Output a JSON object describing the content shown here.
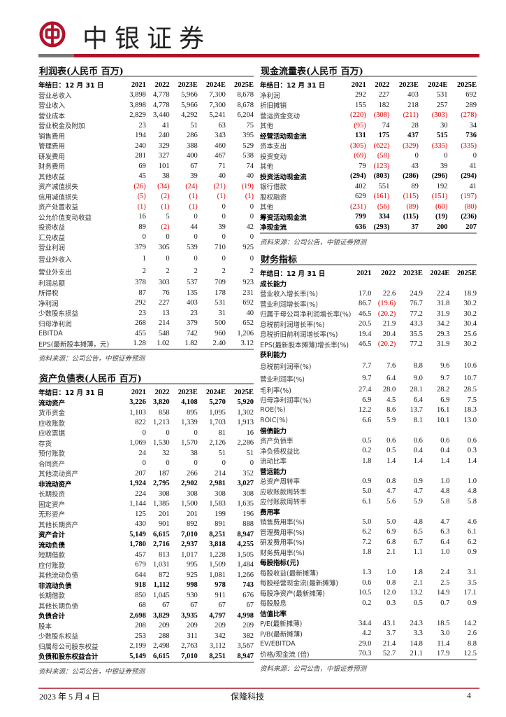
{
  "header": {
    "brand": "中银证券",
    "brand_color": "#b0132a",
    "logo": "bank-of-china-logo"
  },
  "columns": [
    "2021",
    "2022",
    "2023E",
    "2024E",
    "2025E"
  ],
  "income": {
    "title": "利润表(人民币 百万)",
    "header_label": "年结日：12 月 31 日",
    "rows": [
      {
        "label": "营业总收入",
        "values": [
          "3,898",
          "4,778",
          "5,966",
          "7,300",
          "8,678"
        ]
      },
      {
        "label": "营业收入",
        "values": [
          "3,898",
          "4,778",
          "5,966",
          "7,300",
          "8,678"
        ]
      },
      {
        "label": "营业成本",
        "values": [
          "2,829",
          "3,440",
          "4,292",
          "5,241",
          "6,204"
        ]
      },
      {
        "label": "营业税金及附加",
        "values": [
          "23",
          "41",
          "51",
          "63",
          "75"
        ]
      },
      {
        "label": "销售费用",
        "values": [
          "194",
          "240",
          "286",
          "343",
          "395"
        ]
      },
      {
        "label": "管理费用",
        "values": [
          "240",
          "329",
          "388",
          "460",
          "529"
        ]
      },
      {
        "label": "研发费用",
        "values": [
          "281",
          "327",
          "400",
          "467",
          "538"
        ]
      },
      {
        "label": "财务费用",
        "values": [
          "69",
          "101",
          "67",
          "71",
          "74"
        ]
      },
      {
        "label": "其他收益",
        "values": [
          "45",
          "38",
          "39",
          "40",
          "40"
        ]
      },
      {
        "label": "资产减值损失",
        "values": [
          "(26)",
          "(34)",
          "(24)",
          "(21)",
          "(19)"
        ]
      },
      {
        "label": "信用减值损失",
        "values": [
          "(5)",
          "(2)",
          "(1)",
          "(1)",
          "(1)"
        ]
      },
      {
        "label": "资产处置收益",
        "values": [
          "(1)",
          "(1)",
          "(1)",
          "0",
          "0"
        ]
      },
      {
        "label": "公允价值变动收益",
        "values": [
          "16",
          "5",
          "0",
          "0",
          "0"
        ]
      },
      {
        "label": "投资收益",
        "values": [
          "89",
          "(2)",
          "44",
          "39",
          "42"
        ]
      },
      {
        "label": "汇兑收益",
        "values": [
          "0",
          "0",
          "0",
          "0",
          "0"
        ]
      },
      {
        "label": "营业利润",
        "values": [
          "379",
          "305",
          "539",
          "710",
          "925"
        ]
      },
      {
        "label": "营业外收入",
        "values": [
          "1",
          "0",
          "0",
          "0",
          "0"
        ],
        "tall": true
      },
      {
        "label": "营业外支出",
        "values": [
          "2",
          "2",
          "2",
          "2",
          "2"
        ],
        "tall": true
      },
      {
        "label": "利润总额",
        "values": [
          "378",
          "303",
          "537",
          "709",
          "923"
        ]
      },
      {
        "label": "所得税",
        "values": [
          "87",
          "76",
          "135",
          "178",
          "231"
        ]
      },
      {
        "label": "净利润",
        "values": [
          "292",
          "227",
          "403",
          "531",
          "692"
        ]
      },
      {
        "label": "少数股东损益",
        "values": [
          "23",
          "13",
          "23",
          "31",
          "40"
        ]
      },
      {
        "label": "归母净利润",
        "values": [
          "268",
          "214",
          "379",
          "500",
          "652"
        ]
      },
      {
        "label": "EBITDA",
        "values": [
          "455",
          "548",
          "742",
          "960",
          "1,206"
        ]
      },
      {
        "label": "EPS(最新股本摊薄，元)",
        "values": [
          "1.28",
          "1.02",
          "1.82",
          "2.40",
          "3.12"
        ]
      }
    ],
    "source": "资料来源：公司公告，中银证券预测"
  },
  "balance": {
    "title": "资产负债表(人民币 百万)",
    "header_label": "年结日：12 月 31 日",
    "rows": [
      {
        "label": "流动资产",
        "values": [
          "3,226",
          "3,820",
          "4,108",
          "5,270",
          "5,920"
        ],
        "bold": true
      },
      {
        "label": "货币资金",
        "values": [
          "1,103",
          "858",
          "895",
          "1,095",
          "1,302"
        ]
      },
      {
        "label": "应收账款",
        "values": [
          "822",
          "1,213",
          "1,339",
          "1,703",
          "1,913"
        ]
      },
      {
        "label": "应收票据",
        "values": [
          "0",
          "0",
          "0",
          "81",
          "16"
        ]
      },
      {
        "label": "存货",
        "values": [
          "1,069",
          "1,530",
          "1,570",
          "2,126",
          "2,286"
        ]
      },
      {
        "label": "预付账款",
        "values": [
          "24",
          "32",
          "38",
          "51",
          "51"
        ]
      },
      {
        "label": "合同资产",
        "values": [
          "0",
          "0",
          "0",
          "0",
          "0"
        ]
      },
      {
        "label": "其他流动资产",
        "values": [
          "207",
          "187",
          "266",
          "214",
          "352"
        ]
      },
      {
        "label": "非流动资产",
        "values": [
          "1,924",
          "2,795",
          "2,902",
          "2,981",
          "3,027"
        ],
        "bold": true
      },
      {
        "label": "长期投资",
        "values": [
          "224",
          "308",
          "308",
          "308",
          "308"
        ]
      },
      {
        "label": "固定资产",
        "values": [
          "1,144",
          "1,385",
          "1,500",
          "1,583",
          "1,635"
        ]
      },
      {
        "label": "无形资产",
        "values": [
          "125",
          "201",
          "201",
          "199",
          "196"
        ]
      },
      {
        "label": "其他长期资产",
        "values": [
          "430",
          "901",
          "892",
          "891",
          "888"
        ]
      },
      {
        "label": "资产合计",
        "values": [
          "5,149",
          "6,615",
          "7,010",
          "8,251",
          "8,947"
        ],
        "bold": true
      },
      {
        "label": "流动负债",
        "values": [
          "1,780",
          "2,716",
          "2,937",
          "3,818",
          "4,255"
        ],
        "bold": true
      },
      {
        "label": "短期借款",
        "values": [
          "457",
          "813",
          "1,017",
          "1,228",
          "1,505"
        ]
      },
      {
        "label": "应付账款",
        "values": [
          "679",
          "1,031",
          "995",
          "1,509",
          "1,484"
        ]
      },
      {
        "label": "其他流动负债",
        "values": [
          "644",
          "872",
          "925",
          "1,081",
          "1,266"
        ]
      },
      {
        "label": "非流动负债",
        "values": [
          "918",
          "1,112",
          "998",
          "978",
          "743"
        ],
        "bold": true
      },
      {
        "label": "长期借款",
        "values": [
          "850",
          "1,045",
          "930",
          "911",
          "676"
        ]
      },
      {
        "label": "其他长期负债",
        "values": [
          "68",
          "67",
          "67",
          "67",
          "67"
        ]
      },
      {
        "label": "负债合计",
        "values": [
          "2,698",
          "3,829",
          "3,935",
          "4,797",
          "4,998"
        ],
        "bold": true
      },
      {
        "label": "股本",
        "values": [
          "208",
          "209",
          "209",
          "209",
          "209"
        ]
      },
      {
        "label": "少数股东权益",
        "values": [
          "253",
          "288",
          "311",
          "342",
          "382"
        ]
      },
      {
        "label": "归属母公司股东权益",
        "values": [
          "2,199",
          "2,498",
          "2,763",
          "3,112",
          "3,567"
        ]
      },
      {
        "label": "负债和股东权益合计",
        "values": [
          "5,149",
          "6,615",
          "7,010",
          "8,251",
          "8,947"
        ],
        "bold": true
      }
    ],
    "source": "资料来源：公司公告，中银证券预测"
  },
  "cashflow": {
    "title": "现金流量表(人民币 百万)",
    "header_label": "年结日：12 月 31 日",
    "rows": [
      {
        "label": "净利润",
        "values": [
          "292",
          "227",
          "403",
          "531",
          "692"
        ]
      },
      {
        "label": "折旧摊销",
        "values": [
          "155",
          "182",
          "218",
          "257",
          "289"
        ]
      },
      {
        "label": "营运资金变动",
        "values": [
          "(220)",
          "(308)",
          "(211)",
          "(303)",
          "(278)"
        ]
      },
      {
        "label": "其他",
        "values": [
          "(95)",
          "74",
          "28",
          "30",
          "34"
        ]
      },
      {
        "label": "经营活动现金流",
        "values": [
          "131",
          "175",
          "437",
          "515",
          "736"
        ],
        "bold": true
      },
      {
        "label": "资本支出",
        "values": [
          "(305)",
          "(622)",
          "(329)",
          "(335)",
          "(335)"
        ]
      },
      {
        "label": "投资变动",
        "values": [
          "(69)",
          "(58)",
          "0",
          "0",
          "0"
        ]
      },
      {
        "label": "其他",
        "values": [
          "79",
          "(123)",
          "43",
          "39",
          "41"
        ]
      },
      {
        "label": "投资活动现金流",
        "values": [
          "(294)",
          "(803)",
          "(286)",
          "(296)",
          "(294)"
        ],
        "bold": true
      },
      {
        "label": "银行借款",
        "values": [
          "402",
          "551",
          "89",
          "192",
          "41"
        ]
      },
      {
        "label": "股权融资",
        "values": [
          "629",
          "(161)",
          "(115)",
          "(151)",
          "(197)"
        ]
      },
      {
        "label": "其他",
        "values": [
          "(231)",
          "(56)",
          "(89)",
          "(60)",
          "(80)"
        ]
      },
      {
        "label": "筹资活动现金流",
        "values": [
          "799",
          "334",
          "(115)",
          "(19)",
          "(236)"
        ],
        "bold": true
      },
      {
        "label": "净现金流",
        "values": [
          "636",
          "(293)",
          "37",
          "200",
          "207"
        ],
        "bold": true
      }
    ],
    "source": "资料来源：公司公告，中银证券预测"
  },
  "ratios": {
    "title": "财务指标",
    "header_label": "年结日：12 月 31 日",
    "rows": [
      {
        "label": "成长能力",
        "values": [
          "",
          "",
          "",
          "",
          ""
        ],
        "bold": true
      },
      {
        "label": "营业收入增长率(%)",
        "values": [
          "17.0",
          "22.6",
          "24.9",
          "22.4",
          "18.9"
        ]
      },
      {
        "label": "营业利润增长率(%)",
        "values": [
          "86.7",
          "(19.6)",
          "76.7",
          "31.8",
          "30.2"
        ]
      },
      {
        "label": "归属于母公司净利润增长率(%)",
        "values": [
          "46.5",
          "(20.2)",
          "77.2",
          "31.9",
          "30.2"
        ]
      },
      {
        "label": "息税前利润增长率(%)",
        "values": [
          "20.5",
          "21.9",
          "43.3",
          "34.2",
          "30.4"
        ]
      },
      {
        "label": "息税折旧前利润增长率(%)",
        "values": [
          "19.4",
          "20.4",
          "35.5",
          "29.3",
          "25.6"
        ]
      },
      {
        "label": "EPS(最新股本摊薄)增长率(%)",
        "values": [
          "46.5",
          "(20.2)",
          "77.2",
          "31.9",
          "30.2"
        ]
      },
      {
        "label": "获利能力",
        "values": [
          "",
          "",
          "",
          "",
          ""
        ],
        "bold": true
      },
      {
        "label": "息税前利润率(%)",
        "values": [
          "7.7",
          "7.6",
          "8.8",
          "9.6",
          "10.6"
        ],
        "tall": true
      },
      {
        "label": "营业利润率(%)",
        "values": [
          "9.7",
          "6.4",
          "9.0",
          "9.7",
          "10.7"
        ],
        "tall": true
      },
      {
        "label": "毛利率(%)",
        "values": [
          "27.4",
          "28.0",
          "28.1",
          "28.2",
          "28.5"
        ]
      },
      {
        "label": "归母净利润率(%)",
        "values": [
          "6.9",
          "4.5",
          "6.4",
          "6.9",
          "7.5"
        ]
      },
      {
        "label": "ROE(%)",
        "values": [
          "12.2",
          "8.6",
          "13.7",
          "16.1",
          "18.3"
        ]
      },
      {
        "label": "ROIC(%)",
        "values": [
          "6.6",
          "5.9",
          "8.1",
          "10.1",
          "13.0"
        ]
      },
      {
        "label": "偿债能力",
        "values": [
          "",
          "",
          "",
          "",
          ""
        ],
        "bold": true
      },
      {
        "label": "资产负债率",
        "values": [
          "0.5",
          "0.6",
          "0.6",
          "0.6",
          "0.6"
        ]
      },
      {
        "label": "净负债权益比",
        "values": [
          "0.2",
          "0.5",
          "0.4",
          "0.4",
          "0.3"
        ]
      },
      {
        "label": "流动比率",
        "values": [
          "1.8",
          "1.4",
          "1.4",
          "1.4",
          "1.4"
        ]
      },
      {
        "label": "营运能力",
        "values": [
          "",
          "",
          "",
          "",
          ""
        ],
        "bold": true
      },
      {
        "label": "总资产周转率",
        "values": [
          "0.9",
          "0.8",
          "0.9",
          "1.0",
          "1.0"
        ]
      },
      {
        "label": "应收账款周转率",
        "values": [
          "5.0",
          "4.7",
          "4.7",
          "4.8",
          "4.8"
        ]
      },
      {
        "label": "应付账款周转率",
        "values": [
          "6.1",
          "5.6",
          "5.9",
          "5.8",
          "5.8"
        ]
      },
      {
        "label": "费用率",
        "values": [
          "",
          "",
          "",
          "",
          ""
        ],
        "bold": true
      },
      {
        "label": "销售费用率(%)",
        "values": [
          "5.0",
          "5.0",
          "4.8",
          "4.7",
          "4.6"
        ]
      },
      {
        "label": "管理费用率(%)",
        "values": [
          "6.2",
          "6.9",
          "6.5",
          "6.3",
          "6.1"
        ]
      },
      {
        "label": "研发费用率(%)",
        "values": [
          "7.2",
          "6.8",
          "6.7",
          "6.4",
          "6.2"
        ]
      },
      {
        "label": "财务费用率(%)",
        "values": [
          "1.8",
          "2.1",
          "1.1",
          "1.0",
          "0.9"
        ]
      },
      {
        "label": "每股指标(元)",
        "values": [
          "",
          "",
          "",
          "",
          ""
        ],
        "bold": true
      },
      {
        "label": "每股收益(最新摊薄)",
        "values": [
          "1.3",
          "1.0",
          "1.8",
          "2.4",
          "3.1"
        ]
      },
      {
        "label": "每股经营现金流(最新摊薄)",
        "values": [
          "0.6",
          "0.8",
          "2.1",
          "2.5",
          "3.5"
        ]
      },
      {
        "label": "每股净资产(最新摊薄)",
        "values": [
          "10.5",
          "12.0",
          "13.2",
          "14.9",
          "17.1"
        ]
      },
      {
        "label": "每股股息",
        "values": [
          "0.2",
          "0.3",
          "0.5",
          "0.7",
          "0.9"
        ]
      },
      {
        "label": "估值比率",
        "values": [
          "",
          "",
          "",
          "",
          ""
        ],
        "bold": true
      },
      {
        "label": "P/E(最新摊薄)",
        "values": [
          "34.4",
          "43.1",
          "24.3",
          "18.5",
          "14.2"
        ]
      },
      {
        "label": "P/B(最新摊薄)",
        "values": [
          "4.2",
          "3.7",
          "3.3",
          "3.0",
          "2.6"
        ]
      },
      {
        "label": "EV/EBITDA",
        "values": [
          "29.0",
          "21.4",
          "14.8",
          "11.4",
          "8.8"
        ]
      },
      {
        "label": "价格/现金流 (倍)",
        "values": [
          "70.3",
          "52.7",
          "21.1",
          "17.9",
          "12.5"
        ]
      }
    ],
    "source": "资料来源：公司公告，中银证券预测"
  },
  "footer": {
    "date": "2023 年 5 月 4 日",
    "company": "保隆科技",
    "page": "4"
  }
}
